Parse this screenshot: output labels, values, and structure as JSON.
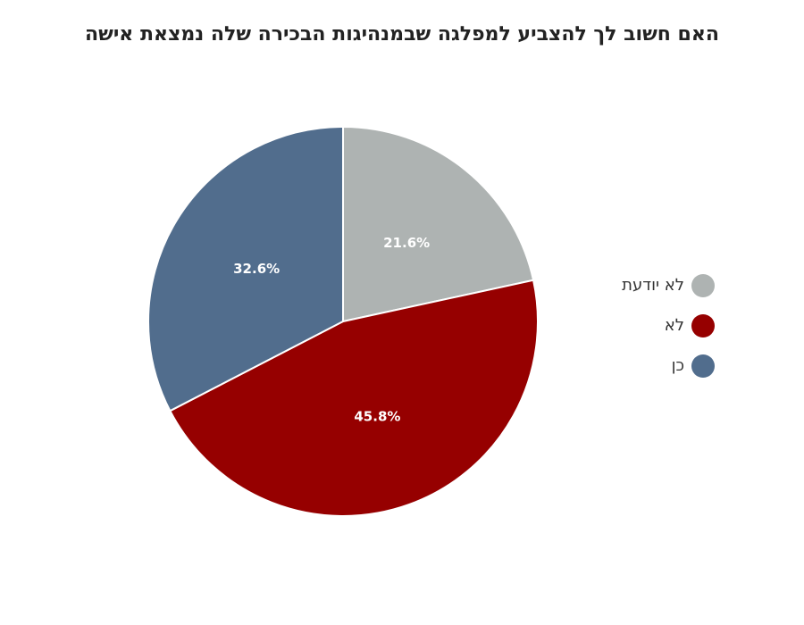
{
  "chart_data": {
    "type": "pie",
    "title": "האם חשוב לך להצביע למפלגה שבמנהיגות הבכירה שלה נמצאת אישה",
    "slices": [
      {
        "name": "לא יודעת",
        "value": 21.6,
        "label": "21.6%",
        "color": "#aeb3b2"
      },
      {
        "name": "לא",
        "value": 45.8,
        "label": "45.8%",
        "color": "#960000"
      },
      {
        "name": "כן",
        "value": 32.6,
        "label": "32.6%",
        "color": "#516d8d"
      }
    ],
    "legend_position": "right"
  }
}
